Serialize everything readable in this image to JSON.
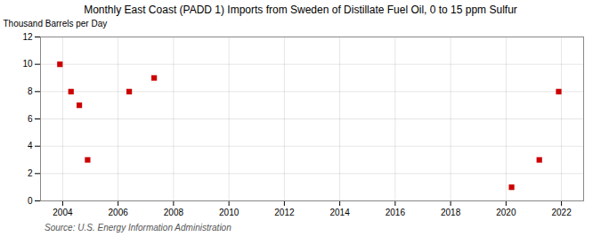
{
  "chart_data": {
    "type": "scatter",
    "title": "Monthly East Coast (PADD 1) Imports from Sweden of Distillate Fuel Oil, 0 to 15 ppm Sulfur",
    "ylabel": "Thousand Barrels per Day",
    "source": "Source: U.S. Energy Information Administration",
    "x": [
      2003.9,
      2004.3,
      2004.6,
      2004.9,
      2006.4,
      2007.3,
      2020.2,
      2021.2,
      2021.9
    ],
    "values": [
      10,
      8,
      7,
      3,
      8,
      9,
      1,
      3,
      8
    ],
    "color": "#cc0000",
    "marker": "square",
    "xlim": [
      2003.2,
      2022.8
    ],
    "ylim": [
      0,
      12
    ],
    "xticks": [
      2004,
      2006,
      2008,
      2010,
      2012,
      2014,
      2016,
      2018,
      2020,
      2022
    ],
    "yticks": [
      0,
      2,
      4,
      6,
      8,
      10,
      12
    ],
    "grid": true
  }
}
